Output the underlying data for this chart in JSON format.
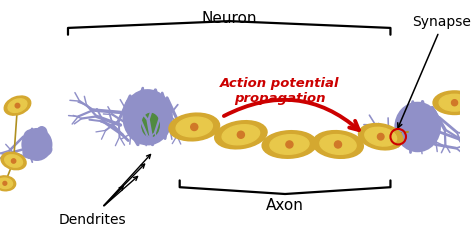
{
  "background_color": "#ffffff",
  "neuron_body_color": "#9090c8",
  "axon_segment_outer_color": "#d4a830",
  "axon_segment_inner_color": "#e8c84a",
  "axon_dot_color": "#d07828",
  "nucleus_color": "#508a40",
  "dendrite_color": "#9090c8",
  "action_potential_color": "#cc0000",
  "synapse_circle_color": "#cc0000",
  "text_color": "#000000",
  "label_neuron": "Neuron",
  "label_axon": "Axon",
  "label_synapse": "Synapse",
  "label_dendrites": "Dendrites",
  "label_action": "Action potential\npropagation",
  "figsize": [
    4.74,
    2.32
  ],
  "dpi": 100
}
